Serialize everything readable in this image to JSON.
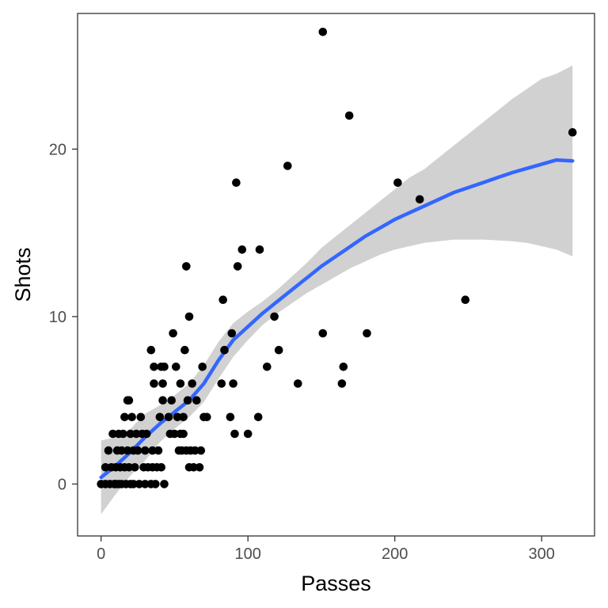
{
  "chart_data": {
    "type": "scatter",
    "title": "",
    "xlabel": "Passes",
    "ylabel": "Shots",
    "xlim": [
      -16,
      336
    ],
    "ylim": [
      -3.1,
      28.1
    ],
    "x_ticks": [
      0,
      100,
      200,
      300
    ],
    "y_ticks": [
      0,
      10,
      20
    ],
    "grid": false,
    "legend": "none",
    "colors": {
      "points": "#000000",
      "smooth_line": "#3366ff",
      "confidence_band": "#cccccc",
      "panel_border": "#333333"
    },
    "points": [
      [
        0,
        0
      ],
      [
        3,
        1
      ],
      [
        3,
        0
      ],
      [
        5,
        2
      ],
      [
        6,
        0
      ],
      [
        7,
        1
      ],
      [
        8,
        3
      ],
      [
        9,
        0
      ],
      [
        10,
        1
      ],
      [
        10,
        0
      ],
      [
        11,
        2
      ],
      [
        12,
        3
      ],
      [
        12,
        0
      ],
      [
        13,
        1
      ],
      [
        14,
        2
      ],
      [
        14,
        0
      ],
      [
        15,
        3
      ],
      [
        16,
        4
      ],
      [
        16,
        1
      ],
      [
        17,
        0
      ],
      [
        18,
        5
      ],
      [
        18,
        2
      ],
      [
        19,
        5
      ],
      [
        19,
        1
      ],
      [
        20,
        3
      ],
      [
        20,
        0
      ],
      [
        21,
        4
      ],
      [
        22,
        2
      ],
      [
        22,
        0
      ],
      [
        23,
        1
      ],
      [
        24,
        3
      ],
      [
        25,
        2
      ],
      [
        26,
        0
      ],
      [
        27,
        4
      ],
      [
        28,
        3
      ],
      [
        29,
        1
      ],
      [
        30,
        2
      ],
      [
        30,
        0
      ],
      [
        31,
        3
      ],
      [
        32,
        1
      ],
      [
        34,
        8
      ],
      [
        34,
        0
      ],
      [
        35,
        2
      ],
      [
        35,
        1
      ],
      [
        36,
        6
      ],
      [
        36,
        7
      ],
      [
        37,
        0
      ],
      [
        38,
        1
      ],
      [
        39,
        2
      ],
      [
        40,
        4
      ],
      [
        41,
        1
      ],
      [
        41,
        7
      ],
      [
        42,
        5
      ],
      [
        42,
        6
      ],
      [
        43,
        0
      ],
      [
        43,
        7
      ],
      [
        46,
        4
      ],
      [
        47,
        3
      ],
      [
        48,
        5
      ],
      [
        49,
        9
      ],
      [
        50,
        3
      ],
      [
        51,
        7
      ],
      [
        52,
        4
      ],
      [
        53,
        2
      ],
      [
        54,
        6
      ],
      [
        54,
        3
      ],
      [
        55,
        2
      ],
      [
        56,
        4
      ],
      [
        56,
        3
      ],
      [
        57,
        8
      ],
      [
        58,
        13
      ],
      [
        58,
        2
      ],
      [
        59,
        5
      ],
      [
        60,
        10
      ],
      [
        60,
        1
      ],
      [
        61,
        2
      ],
      [
        62,
        6
      ],
      [
        63,
        1
      ],
      [
        64,
        2
      ],
      [
        65,
        5
      ],
      [
        67,
        1
      ],
      [
        68,
        2
      ],
      [
        69,
        7
      ],
      [
        70,
        4
      ],
      [
        72,
        4
      ],
      [
        82,
        6
      ],
      [
        83,
        11
      ],
      [
        84,
        8
      ],
      [
        88,
        4
      ],
      [
        89,
        9
      ],
      [
        90,
        6
      ],
      [
        91,
        3
      ],
      [
        92,
        18
      ],
      [
        93,
        13
      ],
      [
        96,
        14
      ],
      [
        100,
        3
      ],
      [
        107,
        4
      ],
      [
        108,
        14
      ],
      [
        113,
        7
      ],
      [
        118,
        10
      ],
      [
        121,
        8
      ],
      [
        127,
        19
      ],
      [
        134,
        6
      ],
      [
        151,
        27
      ],
      [
        151,
        9
      ],
      [
        164,
        6
      ],
      [
        165,
        7
      ],
      [
        169,
        22
      ],
      [
        181,
        9
      ],
      [
        202,
        18
      ],
      [
        217,
        17
      ],
      [
        248,
        11
      ],
      [
        321,
        21
      ]
    ],
    "smooth_line": [
      [
        0,
        0.4
      ],
      [
        10,
        1.1
      ],
      [
        20,
        1.9
      ],
      [
        30,
        2.8
      ],
      [
        40,
        3.6
      ],
      [
        50,
        4.3
      ],
      [
        60,
        5.0
      ],
      [
        70,
        6.0
      ],
      [
        80,
        7.4
      ],
      [
        90,
        8.6
      ],
      [
        100,
        9.4
      ],
      [
        110,
        10.2
      ],
      [
        120,
        10.9
      ],
      [
        130,
        11.6
      ],
      [
        140,
        12.3
      ],
      [
        150,
        13.0
      ],
      [
        160,
        13.6
      ],
      [
        170,
        14.2
      ],
      [
        180,
        14.8
      ],
      [
        190,
        15.3
      ],
      [
        200,
        15.8
      ],
      [
        210,
        16.2
      ],
      [
        220,
        16.6
      ],
      [
        230,
        17.0
      ],
      [
        240,
        17.4
      ],
      [
        250,
        17.7
      ],
      [
        260,
        18.0
      ],
      [
        270,
        18.3
      ],
      [
        280,
        18.6
      ],
      [
        290,
        18.85
      ],
      [
        300,
        19.1
      ],
      [
        310,
        19.35
      ],
      [
        321,
        19.3
      ]
    ],
    "confidence_band": [
      [
        0,
        -1.8,
        2.6
      ],
      [
        10,
        -0.6,
        2.8
      ],
      [
        20,
        0.5,
        3.3
      ],
      [
        30,
        1.4,
        4.2
      ],
      [
        40,
        2.5,
        4.7
      ],
      [
        50,
        3.3,
        5.3
      ],
      [
        60,
        4.0,
        6.0
      ],
      [
        70,
        4.9,
        7.1
      ],
      [
        80,
        6.3,
        8.5
      ],
      [
        90,
        7.6,
        9.6
      ],
      [
        100,
        8.6,
        10.3
      ],
      [
        110,
        9.5,
        10.9
      ],
      [
        120,
        10.2,
        11.6
      ],
      [
        130,
        10.8,
        12.4
      ],
      [
        140,
        11.4,
        13.2
      ],
      [
        150,
        11.9,
        14.1
      ],
      [
        160,
        12.4,
        14.8
      ],
      [
        170,
        12.9,
        15.5
      ],
      [
        180,
        13.3,
        16.2
      ],
      [
        190,
        13.7,
        16.9
      ],
      [
        200,
        14.0,
        17.6
      ],
      [
        210,
        14.2,
        18.3
      ],
      [
        220,
        14.4,
        18.8
      ],
      [
        230,
        14.5,
        19.5
      ],
      [
        240,
        14.6,
        20.2
      ],
      [
        250,
        14.6,
        20.9
      ],
      [
        260,
        14.6,
        21.6
      ],
      [
        270,
        14.55,
        22.3
      ],
      [
        280,
        14.5,
        23.0
      ],
      [
        290,
        14.4,
        23.6
      ],
      [
        300,
        14.2,
        24.2
      ],
      [
        310,
        14.0,
        24.5
      ],
      [
        321,
        13.6,
        25.0
      ]
    ]
  }
}
